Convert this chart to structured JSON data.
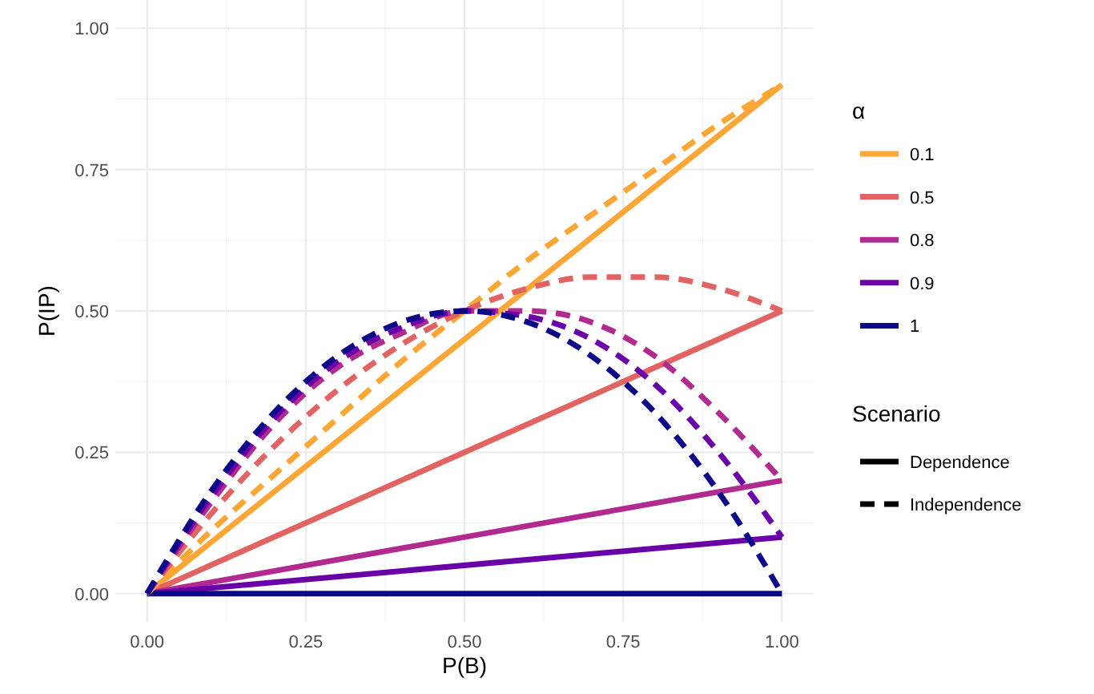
{
  "chart_data": {
    "type": "line",
    "xlabel": "P(B)",
    "ylabel": "P(IP)",
    "legend_title": "α",
    "xlim": [
      -0.05,
      1.05
    ],
    "ylim": [
      -0.05,
      1.05
    ],
    "xticks": [
      {
        "value": 0,
        "label": "0.00"
      },
      {
        "value": 0.25,
        "label": "0.25"
      },
      {
        "value": 0.5,
        "label": "0.50"
      },
      {
        "value": 0.75,
        "label": "0.75"
      },
      {
        "value": 1,
        "label": "1.00"
      }
    ],
    "yticks": [
      {
        "value": 0,
        "label": "0.00"
      },
      {
        "value": 0.25,
        "label": "0.25"
      },
      {
        "value": 0.5,
        "label": "0.50"
      },
      {
        "value": 0.75,
        "label": "0.75"
      },
      {
        "value": 1,
        "label": "1.00"
      }
    ],
    "grid": true,
    "legend": "right",
    "annotations": [
      "Scenario",
      "Dependence",
      "Independence"
    ],
    "series": [
      {
        "name": "0.1",
        "color": "#fca636",
        "line_style": "solid",
        "x": [
          0,
          1
        ],
        "values": [
          0,
          0.9
        ]
      },
      {
        "name": "0.5",
        "color": "#e16462",
        "line_style": "solid",
        "x": [
          0,
          1
        ],
        "values": [
          0,
          0.5
        ]
      },
      {
        "name": "0.8",
        "color": "#b12a90",
        "line_style": "solid",
        "x": [
          0,
          1
        ],
        "values": [
          0,
          0.2
        ]
      },
      {
        "name": "0.9",
        "color": "#6a00a8",
        "line_style": "solid",
        "x": [
          0,
          1
        ],
        "values": [
          0,
          0.1
        ]
      },
      {
        "name": "1",
        "color": "#0d0887",
        "line_style": "solid",
        "x": [
          0,
          1
        ],
        "values": [
          0,
          0
        ]
      },
      {
        "color": "#fca636",
        "line_style": "dashed",
        "x": [
          0,
          0.1,
          0.2,
          0.3,
          0.4,
          0.5,
          0.6,
          0.7,
          0.8,
          0.9,
          1
        ],
        "values": [
          0,
          0.11,
          0.21,
          0.31,
          0.41,
          0.5,
          0.59,
          0.67,
          0.75,
          0.83,
          0.9
        ]
      },
      {
        "color": "#e16462",
        "line_style": "dashed",
        "x": [
          0,
          0.1,
          0.2,
          0.3,
          0.4,
          0.5,
          0.6,
          0.7,
          0.8,
          0.9,
          1
        ],
        "values": [
          0,
          0.14,
          0.26,
          0.36,
          0.44,
          0.5,
          0.54,
          0.56,
          0.56,
          0.54,
          0.5
        ]
      },
      {
        "color": "#b12a90",
        "line_style": "dashed",
        "x": [
          0,
          0.1,
          0.2,
          0.3,
          0.4,
          0.5,
          0.6,
          0.7,
          0.8,
          0.9,
          1
        ],
        "values": [
          0,
          0.16,
          0.3,
          0.4,
          0.46,
          0.5,
          0.5,
          0.48,
          0.42,
          0.32,
          0.2
        ]
      },
      {
        "color": "#6a00a8",
        "line_style": "dashed",
        "x": [
          0,
          0.1,
          0.2,
          0.3,
          0.4,
          0.5,
          0.6,
          0.7,
          0.8,
          0.9,
          1
        ],
        "values": [
          0,
          0.17,
          0.31,
          0.41,
          0.47,
          0.5,
          0.49,
          0.45,
          0.37,
          0.25,
          0.1
        ]
      },
      {
        "color": "#0d0887",
        "line_style": "dashed",
        "x": [
          0,
          0.1,
          0.2,
          0.3,
          0.4,
          0.5,
          0.6,
          0.7,
          0.8,
          0.9,
          1
        ],
        "values": [
          0,
          0.18,
          0.32,
          0.42,
          0.48,
          0.5,
          0.48,
          0.42,
          0.32,
          0.18,
          0
        ]
      }
    ]
  }
}
